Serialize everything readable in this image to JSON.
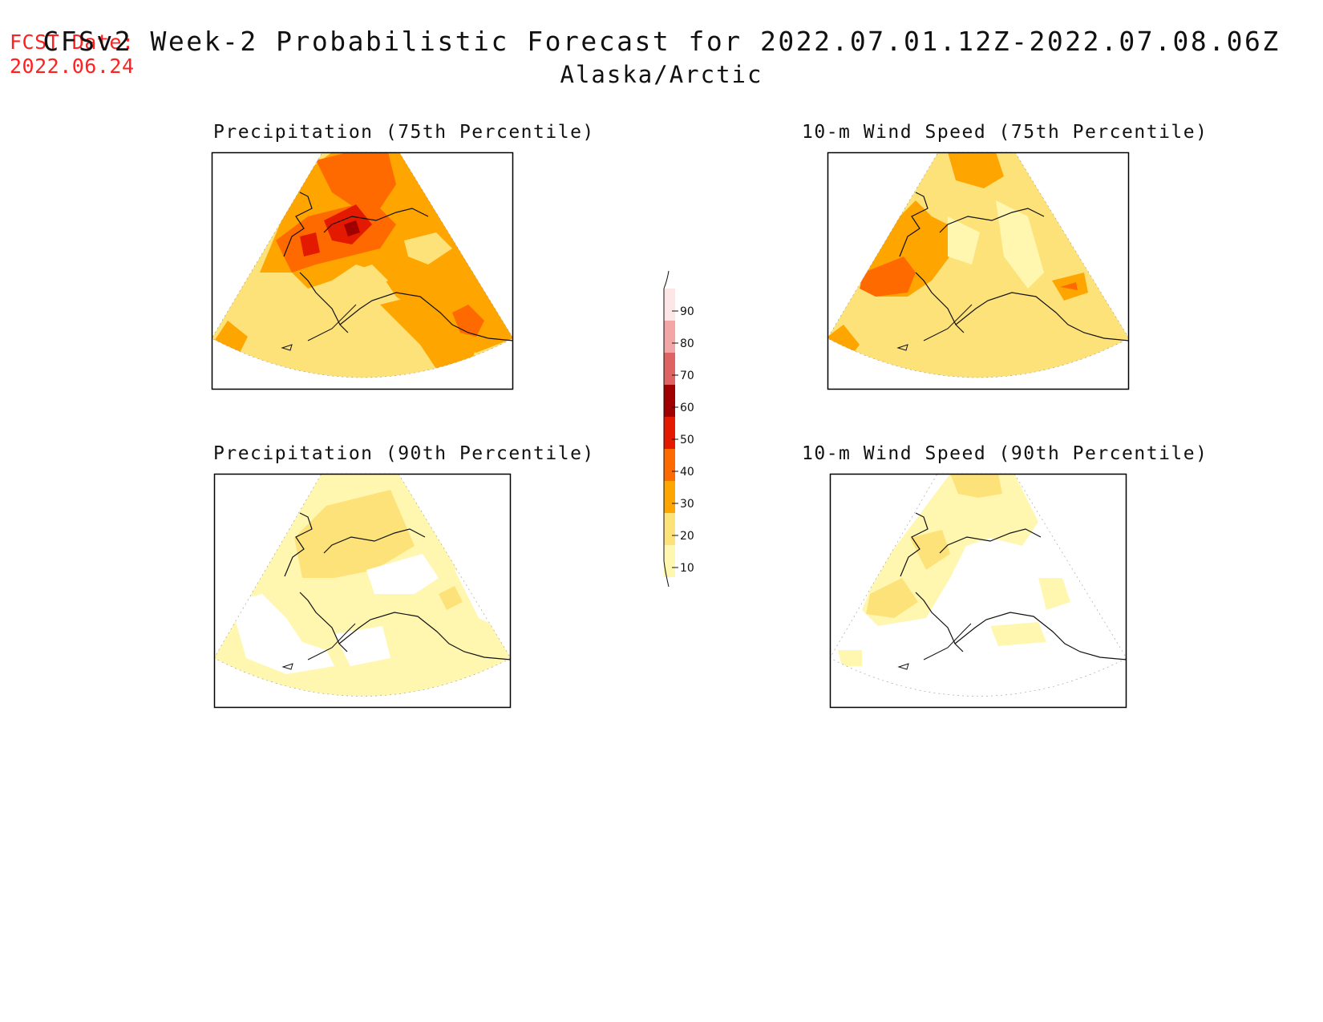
{
  "header": {
    "fcst_label": "FCST Date:",
    "fcst_date": "2022.06.24",
    "title": "CFSv2 Week-2 Probabilistic Forecast for 2022.07.01.12Z-2022.07.08.06Z",
    "region": "Alaska/Arctic"
  },
  "panels": [
    {
      "id": "precip-75",
      "title": "Precipitation (75th Percentile)"
    },
    {
      "id": "wind-75",
      "title": "10-m Wind Speed (75th Percentile)"
    },
    {
      "id": "precip-90",
      "title": "Precipitation (90th Percentile)"
    },
    {
      "id": "wind-90",
      "title": "10-m Wind Speed (90th Percentile)"
    }
  ],
  "colorbar": {
    "labels": [
      "90",
      "80",
      "70",
      "60",
      "50",
      "40",
      "30",
      "20",
      "10"
    ],
    "colors": [
      "#fde6e6",
      "#f2a6a6",
      "#de6464",
      "#a00000",
      "#e31a00",
      "#ff6a00",
      "#ffa500",
      "#fde27a",
      "#fff7b0"
    ]
  }
}
